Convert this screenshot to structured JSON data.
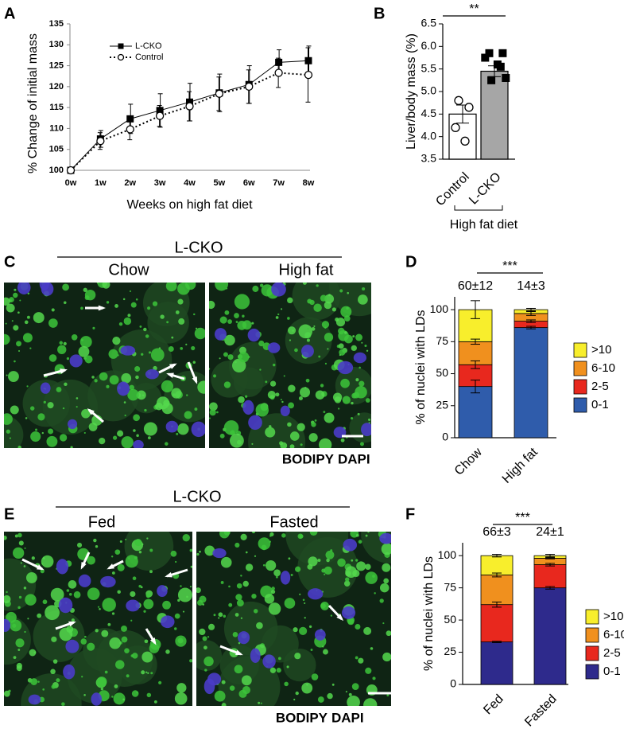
{
  "chart_data": [
    {
      "type": "line",
      "label": "A",
      "x_label": "Weeks on high fat diet",
      "y_label": "% Change of initial mass",
      "categories": [
        "0w",
        "1w",
        "2w",
        "3w",
        "4w",
        "5w",
        "6w",
        "7w",
        "8w"
      ],
      "ylim": [
        100,
        135
      ],
      "yticks": [
        100,
        105,
        110,
        115,
        120,
        125,
        130,
        135
      ],
      "legend": "upper left",
      "series": [
        {
          "name": "L-CKO",
          "color": "#000000",
          "marker": "square",
          "line_style": "solid",
          "values": [
            100,
            107.5,
            112.3,
            114.3,
            116.3,
            118.5,
            120.5,
            125.8,
            126.2
          ],
          "errors": [
            0,
            2,
            3.5,
            4,
            4.5,
            4.5,
            4.5,
            3,
            3.5
          ]
        },
        {
          "name": "Control",
          "color": "#000000",
          "marker": "circle",
          "line_style": "dotted",
          "values": [
            100,
            107,
            109.8,
            113,
            115.3,
            118.3,
            120,
            123.3,
            122.8
          ],
          "errors": [
            0,
            2,
            2.5,
            2.5,
            3.5,
            4,
            4,
            3.5,
            6.5
          ]
        }
      ]
    },
    {
      "type": "bar",
      "label": "B",
      "y_label": "Liver/body mass (%)",
      "x_label": "High fat diet",
      "annotation": "**",
      "categories": [
        "Control",
        "L-CKO"
      ],
      "values": [
        4.5,
        5.45
      ],
      "errors": [
        0.2,
        0.12
      ],
      "colors": [
        "#ffffff",
        "#a6a6a6"
      ],
      "point_markers": [
        "circle",
        "square"
      ],
      "points": [
        [
          4.8,
          4.65,
          4.2,
          3.9
        ],
        [
          5.85,
          5.85,
          5.75,
          5.6,
          5.3,
          5.25,
          5.55
        ]
      ],
      "ylim": [
        3.5,
        6.5
      ],
      "yticks": [
        3.5,
        {
          "value": 4,
          "label": "4.0"
        },
        4.5,
        {
          "value": 5,
          "label": "5.0"
        },
        5.5,
        {
          "value": 6,
          "label": "6.0"
        },
        6.5
      ]
    },
    {
      "type": "stacked_bar",
      "label": "D",
      "y_label": "% of nuclei with LDs",
      "annotation": "***",
      "categories": [
        "Chow",
        "High fat"
      ],
      "total_labels": [
        "60±12",
        "14±3"
      ],
      "ylim": [
        0,
        110
      ],
      "yticks": [
        0,
        25,
        50,
        75,
        100
      ],
      "series": [
        {
          "name": "0-1",
          "color": "#2f5cab",
          "values": [
            40,
            86
          ],
          "errors": [
            5,
            1
          ]
        },
        {
          "name": "2-5",
          "color": "#e8281e",
          "values": [
            17,
            5
          ],
          "errors": [
            3,
            1
          ]
        },
        {
          "name": "6-10",
          "color": "#f0901e",
          "values": [
            18,
            6
          ],
          "errors": [
            2,
            1.5
          ]
        },
        {
          "name": ">10",
          "color": "#f8ee2c",
          "values": [
            25,
            3
          ],
          "errors": [
            7,
            1
          ]
        }
      ]
    },
    {
      "type": "stacked_bar",
      "label": "F",
      "y_label": "% of nuclei with LDs",
      "annotation": "***",
      "categories": [
        "Fed",
        "Fasted"
      ],
      "total_labels": [
        "66±3",
        "24±1"
      ],
      "ylim": [
        0,
        110
      ],
      "yticks": [
        0,
        25,
        50,
        75,
        100
      ],
      "series": [
        {
          "name": "0-1",
          "color": "#2e2a8c",
          "values": [
            33,
            75
          ],
          "errors": [
            0.5,
            1
          ]
        },
        {
          "name": "2-5",
          "color": "#e8281e",
          "values": [
            29,
            18
          ],
          "errors": [
            2,
            1
          ]
        },
        {
          "name": "6-10",
          "color": "#f0901e",
          "values": [
            23,
            5
          ],
          "errors": [
            1.5,
            0.5
          ]
        },
        {
          "name": ">10",
          "color": "#f8ee2c",
          "values": [
            15,
            2
          ],
          "errors": [
            1,
            1
          ]
        }
      ]
    }
  ],
  "image_panels": [
    {
      "label": "C",
      "group": "L-CKO",
      "conditions": [
        "Chow",
        "High fat"
      ],
      "stains": [
        "BODIPY",
        "DAPI"
      ]
    },
    {
      "label": "E",
      "group": "L-CKO",
      "conditions": [
        "Fed",
        "Fasted"
      ],
      "stains": [
        "BODIPY",
        "DAPI"
      ]
    }
  ]
}
